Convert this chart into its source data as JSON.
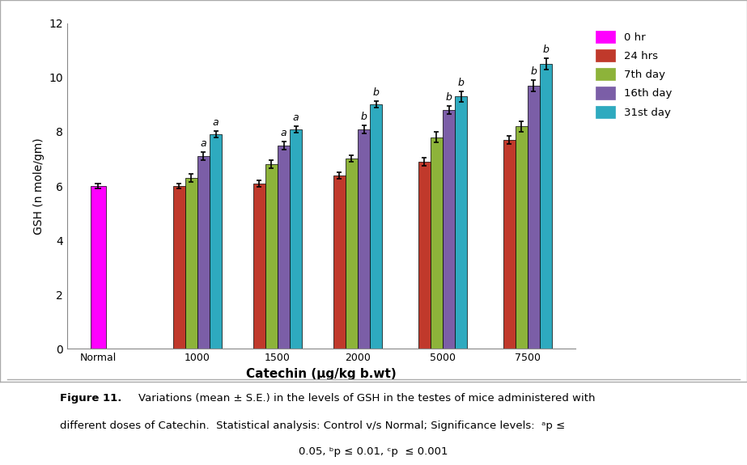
{
  "categories": [
    "Normal",
    "1000",
    "1500",
    "2000",
    "5000",
    "7500"
  ],
  "series": {
    "0 hr": [
      6.0,
      null,
      null,
      null,
      null,
      null
    ],
    "24 hrs": [
      null,
      6.0,
      6.1,
      6.4,
      6.9,
      7.7
    ],
    "7th day": [
      null,
      6.3,
      6.8,
      7.0,
      7.8,
      8.2
    ],
    "16th day": [
      null,
      7.1,
      7.5,
      8.1,
      8.8,
      9.7
    ],
    "31st day": [
      null,
      7.9,
      8.1,
      9.0,
      9.3,
      10.5
    ]
  },
  "errors": {
    "0 hr": [
      0.1,
      null,
      null,
      null,
      null,
      null
    ],
    "24 hrs": [
      null,
      0.1,
      0.12,
      0.12,
      0.15,
      0.15
    ],
    "7th day": [
      null,
      0.15,
      0.15,
      0.12,
      0.2,
      0.2
    ],
    "16th day": [
      null,
      0.15,
      0.15,
      0.15,
      0.15,
      0.2
    ],
    "31st day": [
      null,
      0.12,
      0.12,
      0.12,
      0.2,
      0.2
    ]
  },
  "colors": {
    "0 hr": "#ff00ff",
    "24 hrs": "#c0392b",
    "7th day": "#8db33a",
    "16th day": "#7b5ea7",
    "31st day": "#2eaabf"
  },
  "sig_labels": {
    "1000": {
      "16th day": "a",
      "31st day": "a"
    },
    "1500": {
      "16th day": "a",
      "31st day": "a"
    },
    "2000": {
      "16th day": "b",
      "31st day": "b"
    },
    "5000": {
      "16th day": "b",
      "31st day": "b"
    },
    "7500": {
      "16th day": "b",
      "31st day": "b"
    }
  },
  "ylabel": "GSH (n mole/gm)",
  "xlabel": "Catechin (µg/kg b.wt)",
  "ylim": [
    0,
    12
  ],
  "yticks": [
    0,
    2,
    4,
    6,
    8,
    10,
    12
  ],
  "legend_order": [
    "0 hr",
    "24 hrs",
    "7th day",
    "16th day",
    "31st day"
  ],
  "bar_width": 0.13,
  "background_color": "#ffffff"
}
